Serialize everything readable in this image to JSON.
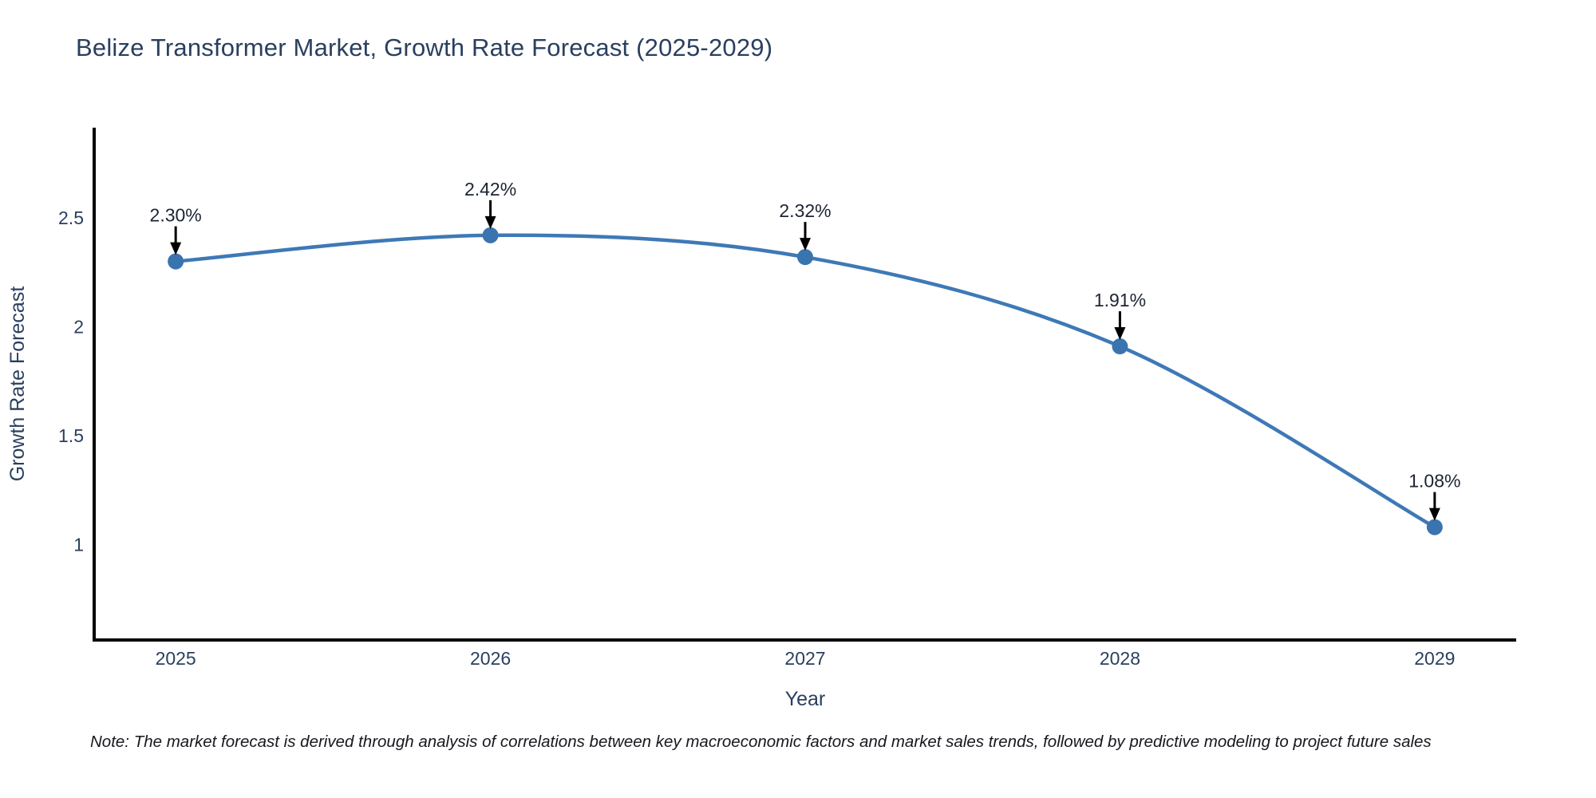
{
  "title": "Belize Transformer Market, Growth Rate Forecast (2025-2029)",
  "note": "Note: The market forecast is derived through analysis of correlations between key macroeconomic factors and market sales trends, followed by predictive modeling to project future sales",
  "chart_data": {
    "type": "line",
    "title": "Belize Transformer Market, Growth Rate Forecast (2025-2029)",
    "xlabel": "Year",
    "ylabel": "Growth Rate Forecast",
    "x": [
      2025,
      2026,
      2027,
      2028,
      2029
    ],
    "values": [
      2.3,
      2.42,
      2.32,
      1.91,
      1.08
    ],
    "point_labels": [
      "2.30%",
      "2.42%",
      "2.32%",
      "1.91%",
      "1.08%"
    ],
    "x_tick_labels": [
      "2025",
      "2026",
      "2027",
      "2028",
      "2029"
    ],
    "y_ticks": [
      1,
      1.5,
      2,
      2.5
    ],
    "y_tick_labels": [
      "1",
      "1.5",
      "2",
      "2.5"
    ],
    "xlim": [
      2024.741,
      2029.259
    ],
    "ylim": [
      0.562,
      2.914
    ],
    "grid": false,
    "legend": false,
    "curve": "spline",
    "colors": {
      "line": "#3e79b6",
      "marker": "#3a74af",
      "axis": "#000000",
      "tick_label": "#2a3f5f",
      "axis_title": "#2a3f5f",
      "annotation_text": "#1c2433",
      "annotation_arrow": "#000000",
      "title": "#2a3f5f",
      "background": "#ffffff"
    }
  }
}
